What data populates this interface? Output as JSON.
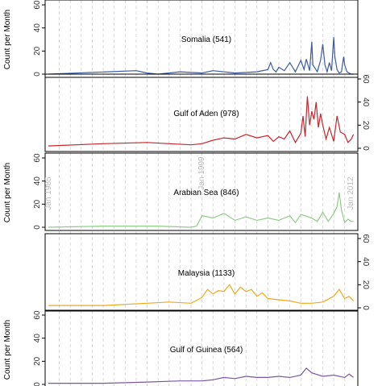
{
  "chart_data": {
    "type": "line",
    "x_range": [
      1985,
      2012.9
    ],
    "ylim": [
      0,
      60
    ],
    "y_ticks": [
      0,
      20,
      40,
      60
    ],
    "y_axis_title": "Count per Month",
    "date_labels": [
      "Jan 1985",
      "Jan 1999",
      "Jan 2012"
    ],
    "grid_lines": "dashed vertical, yearly",
    "panels": [
      {
        "name": "Somalia (541)",
        "color": "#3a5ba0",
        "y_axis_side": "left",
        "y_title_shown": true,
        "x": [
          1985.0,
          1993.0,
          1994.0,
          1995.0,
          1997.0,
          1999.0,
          2000.0,
          2002.0,
          2004.0,
          2005.0,
          2005.25,
          2005.5,
          2005.75,
          2006.0,
          2006.5,
          2007.0,
          2007.5,
          2008.0,
          2008.3,
          2008.5,
          2008.8,
          2009.0,
          2009.1,
          2009.3,
          2009.5,
          2009.8,
          2010.0,
          2010.2,
          2010.4,
          2010.6,
          2010.8,
          2011.0,
          2011.1,
          2011.3,
          2011.5,
          2011.7,
          2011.9,
          2012.0,
          2012.2,
          2012.4,
          2012.6,
          2012.8
        ],
        "y": [
          0,
          3,
          1,
          0,
          2,
          1,
          3,
          1,
          2,
          4,
          10,
          4,
          2,
          6,
          3,
          10,
          2,
          12,
          4,
          13,
          3,
          28,
          8,
          5,
          2,
          12,
          26,
          8,
          2,
          10,
          3,
          32,
          15,
          4,
          1,
          2,
          15,
          8,
          2,
          1,
          0,
          0
        ]
      },
      {
        "name": "Gulf of Aden (978)",
        "color": "#c8252c",
        "y_axis_side": "right",
        "y_title_shown": false,
        "x": [
          1985.0,
          1990.0,
          1994.0,
          1996.0,
          1998.0,
          1999.0,
          2000.0,
          2001.0,
          2002.0,
          2003.0,
          2004.0,
          2005.0,
          2005.5,
          2006.0,
          2006.5,
          2007.0,
          2007.5,
          2008.0,
          2008.2,
          2008.4,
          2008.6,
          2008.8,
          2009.0,
          2009.2,
          2009.4,
          2009.6,
          2009.8,
          2010.0,
          2010.3,
          2010.6,
          2011.0,
          2011.3,
          2011.6,
          2012.0,
          2012.3,
          2012.6,
          2012.8
        ],
        "y": [
          2,
          4,
          5,
          4,
          3,
          4,
          7,
          9,
          8,
          12,
          9,
          11,
          6,
          10,
          8,
          15,
          5,
          13,
          28,
          10,
          45,
          20,
          32,
          25,
          40,
          18,
          30,
          20,
          8,
          18,
          6,
          28,
          14,
          12,
          5,
          8,
          12
        ]
      },
      {
        "name": "Arabian Sea (846)",
        "color": "#8ecc85",
        "y_axis_side": "left",
        "y_title_shown": true,
        "x": [
          1985.0,
          1990.0,
          1995.0,
          1998.0,
          1998.5,
          1999.0,
          2000.0,
          2001.0,
          2002.0,
          2003.0,
          2004.0,
          2005.0,
          2006.0,
          2007.0,
          2007.5,
          2008.0,
          2009.0,
          2009.5,
          2010.0,
          2010.5,
          2011.0,
          2011.3,
          2011.5,
          2011.7,
          2012.0,
          2012.3,
          2012.6,
          2012.8
        ],
        "y": [
          0,
          1,
          1,
          0,
          1,
          10,
          8,
          12,
          6,
          9,
          6,
          8,
          6,
          10,
          4,
          11,
          8,
          5,
          13,
          5,
          12,
          18,
          30,
          15,
          4,
          7,
          5,
          5
        ]
      },
      {
        "name": "Malaysia (1133)",
        "color": "#f0a81e",
        "y_axis_side": "right",
        "y_title_shown": false,
        "x": [
          1985.0,
          1990.0,
          1994.0,
          1996.0,
          1998.0,
          1999.0,
          1999.5,
          2000.0,
          2000.5,
          2001.0,
          2001.5,
          2002.0,
          2002.5,
          2003.0,
          2003.5,
          2004.0,
          2004.5,
          2005.0,
          2006.0,
          2007.0,
          2008.0,
          2009.0,
          2010.0,
          2011.0,
          2011.5,
          2012.0,
          2012.4,
          2012.8
        ],
        "y": [
          2,
          2,
          4,
          5,
          4,
          9,
          16,
          12,
          15,
          14,
          20,
          12,
          18,
          14,
          16,
          10,
          13,
          8,
          7,
          6,
          4,
          4,
          5,
          10,
          16,
          8,
          10,
          6
        ]
      },
      {
        "name": "Gulf of Guinea (564)",
        "color": "#7a57a6",
        "y_axis_side": "left",
        "y_title_shown": true,
        "x": [
          1985.0,
          1990.0,
          1994.0,
          1997.0,
          1999.0,
          2000.0,
          2001.0,
          2002.0,
          2003.0,
          2004.0,
          2005.0,
          2006.0,
          2007.0,
          2008.0,
          2008.5,
          2009.0,
          2010.0,
          2011.0,
          2012.0,
          2012.4,
          2012.8
        ],
        "y": [
          1,
          1,
          2,
          3,
          3,
          4,
          6,
          5,
          7,
          6,
          6,
          7,
          6,
          8,
          14,
          10,
          7,
          8,
          6,
          9,
          6
        ]
      }
    ]
  }
}
